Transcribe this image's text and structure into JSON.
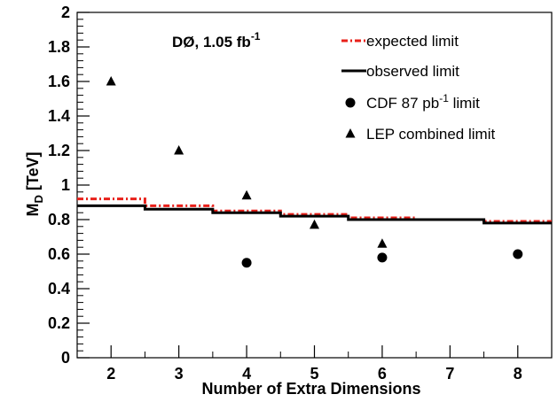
{
  "chart_data": {
    "type": "line",
    "annotation": {
      "main": "DØ, 1.05 fb",
      "sup": "-1"
    },
    "xlabel": "Number of Extra Dimensions",
    "ylabel": {
      "main": "M",
      "sub": "D",
      "rest": " [TeV]"
    },
    "xlim": [
      1.5,
      8.5
    ],
    "ylim": [
      0,
      2
    ],
    "x_ticks": [
      "2",
      "3",
      "4",
      "5",
      "6",
      "7",
      "8"
    ],
    "y_ticks": [
      "0",
      "0.2",
      "0.4",
      "0.6",
      "0.8",
      "1",
      "1.2",
      "1.4",
      "1.6",
      "1.8",
      "2"
    ],
    "grid": false,
    "legend_position": "top-right",
    "x": [
      2,
      3,
      4,
      5,
      6,
      7,
      8
    ],
    "series": [
      {
        "name": "expected limit",
        "style": "step",
        "color": "#e8201a",
        "values": [
          0.92,
          0.88,
          0.85,
          0.83,
          0.81,
          0.8,
          0.79
        ]
      },
      {
        "name": "observed limit",
        "style": "step",
        "color": "#000000",
        "values": [
          0.88,
          0.86,
          0.84,
          0.82,
          0.8,
          0.8,
          0.78
        ]
      },
      {
        "name": "CDF 87 pb",
        "name_sup": "-1",
        "name_suffix": " limit",
        "style": "marker-circle",
        "color": "#000000",
        "x": [
          4,
          6,
          8
        ],
        "values": [
          0.55,
          0.58,
          0.6
        ]
      },
      {
        "name": "LEP combined limit",
        "style": "marker-triangle",
        "color": "#000000",
        "x": [
          2,
          3,
          4,
          5,
          6
        ],
        "values": [
          1.6,
          1.2,
          0.94,
          0.77,
          0.66
        ]
      }
    ]
  }
}
